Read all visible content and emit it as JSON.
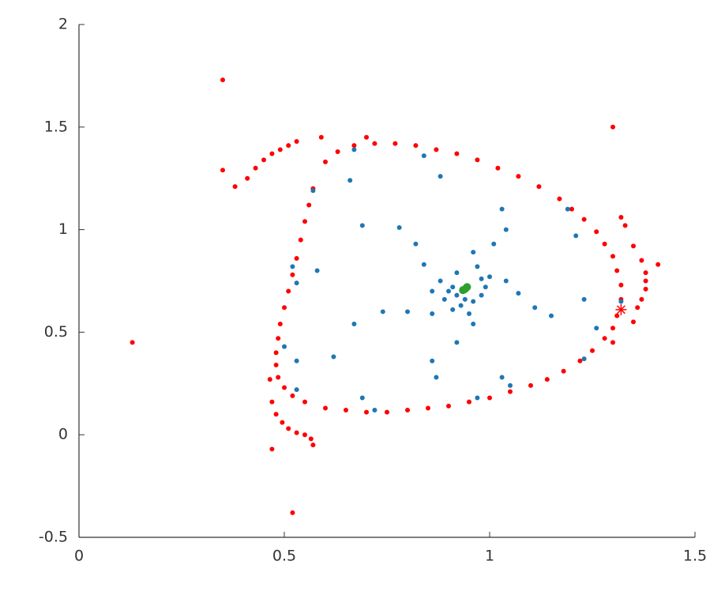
{
  "chart_data": {
    "type": "scatter",
    "xlim": [
      0,
      1.5
    ],
    "ylim": [
      -0.5,
      2
    ],
    "xticks": [
      0,
      0.5,
      1,
      1.5
    ],
    "yticks": [
      -0.5,
      0,
      0.5,
      1,
      1.5,
      2
    ],
    "grid": false,
    "series": [
      {
        "color": "#ff0000",
        "marker": "dot",
        "x": [
          0.57,
          0.6,
          0.63,
          0.67,
          0.72,
          0.77,
          0.82,
          0.87,
          0.92,
          0.97,
          1.02,
          1.07,
          1.12,
          1.17,
          1.2,
          1.23,
          1.26,
          1.28,
          1.3,
          1.31,
          1.32,
          1.32,
          1.31,
          1.3,
          1.28,
          1.25,
          1.22,
          1.18,
          1.14,
          1.1,
          1.05,
          1.0,
          0.95,
          0.9,
          0.85,
          0.8,
          0.75,
          0.7,
          0.65,
          0.6,
          0.55,
          0.52,
          0.5,
          0.485,
          0.48,
          0.48,
          0.485,
          0.49,
          0.5,
          0.51,
          0.52,
          0.53,
          0.54,
          0.55,
          0.56,
          0.35,
          0.35,
          0.38,
          0.41,
          0.43,
          0.45,
          0.47,
          0.49,
          0.51,
          0.53,
          0.59,
          0.7,
          0.13,
          0.52,
          0.47,
          0.57,
          0.565,
          0.55,
          0.53,
          0.51,
          0.495,
          0.48,
          0.47,
          0.465,
          1.3,
          1.32,
          1.33,
          1.35,
          1.37,
          1.38,
          1.38,
          1.38,
          1.37,
          1.36,
          1.35,
          1.41,
          1.3
        ],
        "values": [
          1.2,
          1.33,
          1.38,
          1.41,
          1.42,
          1.42,
          1.41,
          1.39,
          1.37,
          1.34,
          1.3,
          1.26,
          1.21,
          1.15,
          1.1,
          1.05,
          0.99,
          0.93,
          0.87,
          0.8,
          0.73,
          0.66,
          0.58,
          0.52,
          0.47,
          0.41,
          0.36,
          0.31,
          0.27,
          0.24,
          0.21,
          0.18,
          0.16,
          0.14,
          0.13,
          0.12,
          0.11,
          0.11,
          0.12,
          0.13,
          0.16,
          0.19,
          0.23,
          0.28,
          0.34,
          0.4,
          0.47,
          0.54,
          0.62,
          0.7,
          0.78,
          0.86,
          0.95,
          1.04,
          1.12,
          1.73,
          1.29,
          1.21,
          1.25,
          1.3,
          1.34,
          1.37,
          1.39,
          1.41,
          1.43,
          1.45,
          1.45,
          0.45,
          -0.38,
          -0.07,
          -0.05,
          -0.02,
          0.0,
          0.01,
          0.03,
          0.06,
          0.1,
          0.16,
          0.27,
          1.5,
          1.06,
          1.02,
          0.92,
          0.85,
          0.79,
          0.75,
          0.71,
          0.66,
          0.62,
          0.55,
          0.83,
          0.45
        ]
      },
      {
        "color": "#1f77b4",
        "marker": "dot",
        "x": [
          0.67,
          0.57,
          0.66,
          0.84,
          0.88,
          0.69,
          0.78,
          0.82,
          0.84,
          0.52,
          0.53,
          0.58,
          0.5,
          0.53,
          0.62,
          0.67,
          0.74,
          0.8,
          0.86,
          0.86,
          0.87,
          0.92,
          0.53,
          0.69,
          0.72,
          0.97,
          1.03,
          1.05,
          1.03,
          1.04,
          1.01,
          0.96,
          0.97,
          1.04,
          1.07,
          1.11,
          1.15,
          1.23,
          1.26,
          1.23,
          1.32,
          1.19,
          1.21,
          0.92,
          0.88,
          0.91,
          0.92,
          0.94,
          0.96,
          0.98,
          0.99,
          0.98,
          1.0,
          0.9,
          0.93,
          0.95,
          0.91,
          0.96,
          0.89,
          0.86
        ],
        "values": [
          1.39,
          1.19,
          1.24,
          1.36,
          1.26,
          1.02,
          1.01,
          0.93,
          0.83,
          0.82,
          0.74,
          0.8,
          0.43,
          0.36,
          0.38,
          0.54,
          0.6,
          0.6,
          0.59,
          0.36,
          0.28,
          0.45,
          0.22,
          0.18,
          0.12,
          0.18,
          0.28,
          0.24,
          1.1,
          1.0,
          0.93,
          0.89,
          0.82,
          0.75,
          0.69,
          0.62,
          0.58,
          0.66,
          0.52,
          0.37,
          0.65,
          1.1,
          0.97,
          0.79,
          0.75,
          0.72,
          0.68,
          0.66,
          0.65,
          0.68,
          0.72,
          0.76,
          0.77,
          0.7,
          0.63,
          0.59,
          0.61,
          0.54,
          0.66,
          0.7
        ]
      },
      {
        "color": "#2ca02c",
        "marker": "dot",
        "x": [
          0.94,
          0.945,
          0.935
        ],
        "values": [
          0.71,
          0.72,
          0.705
        ]
      },
      {
        "color": "#ff0000",
        "marker": "star",
        "x": [
          1.32
        ],
        "values": [
          0.61
        ]
      }
    ]
  }
}
